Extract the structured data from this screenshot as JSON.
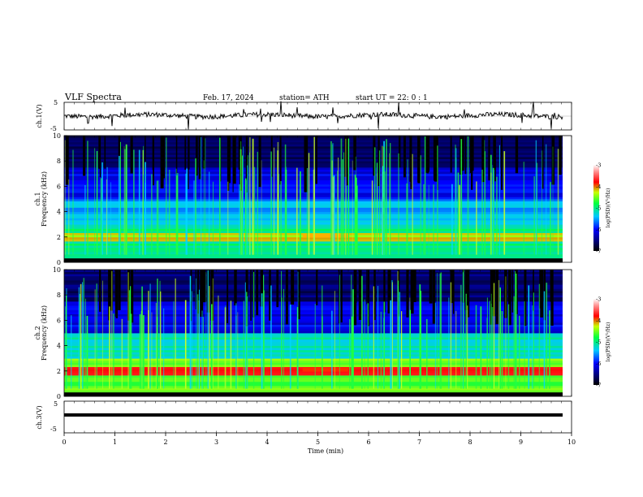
{
  "header": {
    "title": "VLF  Spectra",
    "date": "Feb. 17, 2024",
    "station": "station= ATH",
    "start": "start  UT  =    22: 0   : 1"
  },
  "chart_data": [
    {
      "type": "line",
      "ylabel": "ch.1(V)",
      "ylim": [
        -5,
        5
      ],
      "yticks": [
        "5",
        "-5"
      ],
      "xlim": [
        0,
        10
      ],
      "grid": false
    },
    {
      "type": "heatmap",
      "ylabel_top": "ch.1",
      "ylabel": "Frequency  (kHz)",
      "ylim": [
        0,
        10
      ],
      "yticks": [
        "0",
        "2",
        "4",
        "6",
        "8",
        "10"
      ],
      "xlim": [
        0,
        10
      ],
      "colorbar": {
        "label": "log(PSD)(V²/Hz)",
        "ticks": [
          "-3",
          "-4",
          "-5",
          "-6",
          "-7"
        ],
        "range": [
          -7,
          -3
        ]
      }
    },
    {
      "type": "heatmap",
      "ylabel_top": "ch.2",
      "ylabel": "Frequency  (kHz)",
      "ylim": [
        0,
        10
      ],
      "yticks": [
        "0",
        "2",
        "4",
        "6",
        "8",
        "10"
      ],
      "xlim": [
        0,
        10
      ],
      "colorbar": {
        "label": "log(PSD)(V²/Hz)",
        "ticks": [
          "-3",
          "-4",
          "-5",
          "-6",
          "-7"
        ],
        "range": [
          -7,
          -3
        ]
      }
    },
    {
      "type": "line",
      "ylabel": "ch.3(V)",
      "ylim": [
        -5,
        5
      ],
      "yticks": [
        "5",
        "-5"
      ],
      "xlim": [
        0,
        10
      ],
      "xlabel": "Time  (min)",
      "xticks": [
        "0",
        "1",
        "2",
        "3",
        "4",
        "5",
        "6",
        "7",
        "8",
        "9",
        "10"
      ],
      "grid": false
    }
  ]
}
